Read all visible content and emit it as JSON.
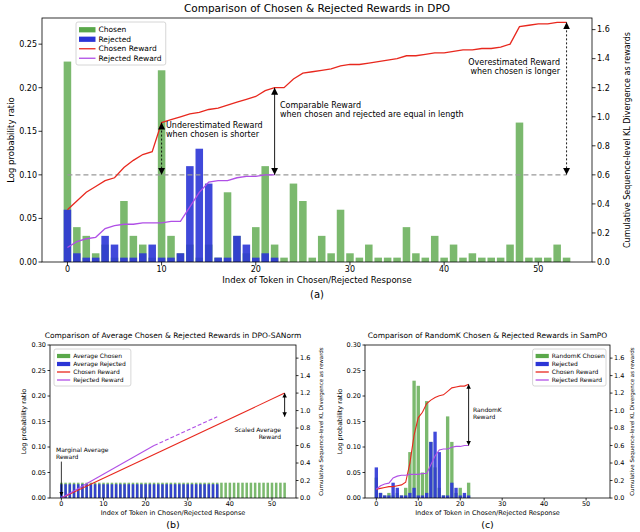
{
  "chart_data": [
    {
      "type": "bar",
      "title": "Comparison of Chosen & Rejected Rewards in DPO",
      "caption": "(a)",
      "x_label": "Index of Token in Chosen/Rejected Response",
      "y_label": "Log probability ratio",
      "y2_label": "Cumulative Sequence-level KL Divergence as rewards",
      "xlim": [
        -2.7,
        55.7
      ],
      "xticks": [
        0,
        10,
        20,
        30,
        40,
        50
      ],
      "ylim": [
        0,
        0.28
      ],
      "yticks": [
        {
          "value": 0,
          "label": "0.00"
        },
        0.05,
        {
          "value": 0.1,
          "label": "0.10"
        },
        0.15,
        {
          "value": 0.2,
          "label": "0.20"
        },
        0.25
      ],
      "y2lim": [
        0,
        1.68
      ],
      "y2ticks": [
        {
          "value": 0,
          "label": "0.0"
        },
        0.2,
        0.4,
        0.6,
        0.8,
        {
          "value": 1,
          "label": "1.0"
        },
        1.2,
        1.4,
        1.6
      ],
      "legend": "upper left",
      "series": [
        {
          "name": "Chosen",
          "type": "bar",
          "color": "#5aa84a",
          "x": [
            0,
            1,
            2,
            3,
            4,
            5,
            6,
            7,
            8,
            9,
            10,
            11,
            12,
            13,
            14,
            15,
            16,
            17,
            18,
            19,
            20,
            21,
            22,
            23,
            24,
            25,
            26,
            27,
            28,
            29,
            30,
            31,
            32,
            33,
            34,
            35,
            36,
            37,
            38,
            39,
            40,
            41,
            42,
            43,
            44,
            45,
            46,
            47,
            48,
            49,
            50,
            51,
            52,
            53
          ],
          "values": [
            0.23,
            0.04,
            0.03,
            0.01,
            0.02,
            0.005,
            0.07,
            0.03,
            0.02,
            0.005,
            0.22,
            0.03,
            0.01,
            0.02,
            0.005,
            0.02,
            0.005,
            0.08,
            0.03,
            0.01,
            0.04,
            0.11,
            0.02,
            0.005,
            0.09,
            0.07,
            0.005,
            0.03,
            0.01,
            0.06,
            0.01,
            0.005,
            0.02,
            0.005,
            0.005,
            0.005,
            0.04,
            0.01,
            0.005,
            0.03,
            0.005,
            0.02,
            0.005,
            0.01,
            0.005,
            0.005,
            0.005,
            0.02,
            0.16,
            0.005,
            0.005,
            0.005,
            0.02,
            0.005
          ]
        },
        {
          "name": "Rejected",
          "type": "bar",
          "color": "#2b35d6",
          "x": [
            0,
            1,
            2,
            3,
            4,
            5,
            6,
            7,
            8,
            9,
            10,
            11,
            12,
            13,
            14,
            15,
            16,
            17,
            18,
            19,
            20,
            21,
            22
          ],
          "values": [
            0.06,
            0.01,
            0.005,
            0.005,
            0.03,
            0.02,
            0.005,
            0.005,
            0.01,
            0.02,
            0.005,
            0.005,
            0.01,
            0.11,
            0.13,
            0.09,
            0.005,
            0.005,
            0.03,
            0.02,
            0.005,
            0.01,
            0.005
          ]
        },
        {
          "name": "Chosen Reward",
          "type": "line",
          "axis": "y2",
          "color": "#e8281e",
          "line_style": "solid",
          "x": [
            0,
            1,
            2,
            3,
            4,
            5,
            6,
            7,
            8,
            9,
            10,
            11,
            12,
            13,
            14,
            15,
            16,
            17,
            18,
            19,
            20,
            21,
            22,
            23,
            24,
            25,
            26,
            27,
            28,
            29,
            30,
            31,
            32,
            33,
            34,
            35,
            36,
            37,
            38,
            39,
            40,
            41,
            42,
            43,
            44,
            45,
            46,
            47,
            48,
            49,
            50,
            51,
            52,
            53
          ],
          "values": [
            0.36,
            0.42,
            0.48,
            0.52,
            0.56,
            0.58,
            0.65,
            0.7,
            0.74,
            0.76,
            0.96,
            0.98,
            1.0,
            1.02,
            1.03,
            1.05,
            1.06,
            1.08,
            1.1,
            1.12,
            1.14,
            1.18,
            1.2,
            1.2,
            1.26,
            1.3,
            1.31,
            1.32,
            1.33,
            1.35,
            1.36,
            1.36,
            1.37,
            1.38,
            1.39,
            1.4,
            1.42,
            1.42,
            1.43,
            1.44,
            1.44,
            1.45,
            1.46,
            1.46,
            1.47,
            1.47,
            1.48,
            1.5,
            1.62,
            1.63,
            1.64,
            1.64,
            1.65,
            1.65
          ]
        },
        {
          "name": "Rejected Reward",
          "type": "line",
          "axis": "y2",
          "color": "#b04fe6",
          "line_style": "solid",
          "x": [
            0,
            1,
            2,
            3,
            4,
            5,
            6,
            7,
            8,
            9,
            10,
            11,
            12,
            13,
            14,
            15,
            16,
            17,
            18,
            19,
            20,
            21,
            22
          ],
          "values": [
            0.1,
            0.14,
            0.16,
            0.17,
            0.23,
            0.25,
            0.26,
            0.26,
            0.27,
            0.27,
            0.27,
            0.28,
            0.28,
            0.38,
            0.48,
            0.55,
            0.56,
            0.56,
            0.58,
            0.59,
            0.59,
            0.6,
            0.6
          ]
        },
        {
          "type": "line",
          "axis": "y2",
          "color": "#999999",
          "line_style": "dashed",
          "x": [
            0,
            53
          ],
          "values": [
            0.6,
            0.6
          ]
        }
      ],
      "annotations": [
        {
          "text": "Underestimated Reward\nwhen chosen is shorter"
        },
        {
          "text": "Comparable Reward\nwhen chosen and rejected are equal in length"
        },
        {
          "text": "Overestimated Reward\nwhen chosen is longer"
        }
      ]
    },
    {
      "type": "bar",
      "title": "Comparison of Average Chosen & Rejected Rewards in DPO-SANorm",
      "caption": "(b)",
      "x_label": "Index of Token in Chosen/Rejected Response",
      "y_label": "Log probability ratio",
      "y2_label": "Cumulative Sequence-level KL Divergence as rewards",
      "xlim": [
        -2.7,
        55.7
      ],
      "xticks": [
        0,
        10,
        20,
        30,
        40,
        50
      ],
      "ylim": [
        0,
        0.3
      ],
      "yticks": [
        {
          "value": 0,
          "label": "0.00"
        },
        0.05,
        {
          "value": 0.1,
          "label": "0.10"
        },
        0.15,
        {
          "value": 0.2,
          "label": "0.20"
        },
        0.25,
        {
          "value": 0.3,
          "label": "0.30"
        }
      ],
      "y2lim": [
        0,
        1.75
      ],
      "y2ticks": [
        {
          "value": 0,
          "label": "0.0"
        },
        0.2,
        0.4,
        0.6,
        0.8,
        {
          "value": 1,
          "label": "1.0"
        },
        1.2,
        1.4,
        1.6
      ],
      "legend": "upper left",
      "series": [
        {
          "name": "Average Chosen",
          "type": "bar",
          "color": "#5aa84a",
          "x": [
            0,
            1,
            2,
            3,
            4,
            5,
            6,
            7,
            8,
            9,
            10,
            11,
            12,
            13,
            14,
            15,
            16,
            17,
            18,
            19,
            20,
            21,
            22,
            23,
            24,
            25,
            26,
            27,
            28,
            29,
            30,
            31,
            32,
            33,
            34,
            35,
            36,
            37,
            38,
            39,
            40,
            41,
            42,
            43,
            44,
            45,
            46,
            47,
            48,
            49,
            50,
            51,
            52,
            53
          ],
          "values": [
            0.03,
            0.03,
            0.03,
            0.03,
            0.03,
            0.03,
            0.03,
            0.03,
            0.03,
            0.03,
            0.03,
            0.03,
            0.03,
            0.03,
            0.03,
            0.03,
            0.03,
            0.03,
            0.03,
            0.03,
            0.03,
            0.03,
            0.03,
            0.03,
            0.03,
            0.03,
            0.03,
            0.03,
            0.03,
            0.03,
            0.03,
            0.03,
            0.03,
            0.03,
            0.03,
            0.03,
            0.03,
            0.03,
            0.03,
            0.03,
            0.03,
            0.03,
            0.03,
            0.03,
            0.03,
            0.03,
            0.03,
            0.03,
            0.03,
            0.03,
            0.03,
            0.03,
            0.03,
            0.03
          ]
        },
        {
          "name": "Average Rejected",
          "type": "bar",
          "color": "#2b35d6",
          "x": [
            0,
            1,
            2,
            3,
            4,
            5,
            6,
            7,
            8,
            9,
            10,
            11,
            12,
            13,
            14,
            15,
            16,
            17,
            18,
            19,
            20,
            21,
            22,
            23,
            24,
            25,
            26,
            27,
            28,
            29,
            30,
            31,
            32,
            33,
            34,
            35,
            36,
            37
          ],
          "values": [
            0.027,
            0.027,
            0.027,
            0.027,
            0.027,
            0.027,
            0.027,
            0.027,
            0.027,
            0.027,
            0.027,
            0.027,
            0.027,
            0.027,
            0.027,
            0.027,
            0.027,
            0.027,
            0.027,
            0.027,
            0.027,
            0.027,
            0.027,
            0.027,
            0.027,
            0.027,
            0.027,
            0.027,
            0.027,
            0.027,
            0.027,
            0.027,
            0.027,
            0.027,
            0.027,
            0.027,
            0.027,
            0.027
          ]
        },
        {
          "name": "Chosen Reward",
          "type": "line",
          "axis": "y2",
          "color": "#e8281e",
          "line_style": "solid",
          "x": [
            0,
            53
          ],
          "values": [
            0,
            1.2
          ]
        },
        {
          "name": "Rejected Reward",
          "type": "line",
          "axis": "y2",
          "color": "#b04fe6",
          "line_style": "solid",
          "x": [
            0,
            22
          ],
          "values": [
            0,
            0.6
          ]
        },
        {
          "type": "line",
          "axis": "y2",
          "color": "#b04fe6",
          "line_style": "dashed",
          "x": [
            22,
            37
          ],
          "values": [
            0.6,
            0.93
          ]
        }
      ],
      "annotations": [
        {
          "text": "Marginal Average\nReward"
        },
        {
          "text": "Scaled Average\nReward"
        }
      ]
    },
    {
      "type": "bar",
      "title": "Comparison of RandomK Chosen & Rejected Rewards in SamPO",
      "caption": "(c)",
      "x_label": "Index of Token in Chosen/Rejected Response",
      "y_label": "Log probability ratio",
      "y2_label": "Cumulative Sequence-level KL Divergence as rewards",
      "xlim": [
        -2.7,
        55.7
      ],
      "xticks": [
        0,
        10,
        20,
        30,
        40,
        50
      ],
      "ylim": [
        0,
        0.3
      ],
      "yticks": [
        {
          "value": 0,
          "label": "0.00"
        },
        0.05,
        {
          "value": 0.1,
          "label": "0.10"
        },
        0.15,
        {
          "value": 0.2,
          "label": "0.20"
        },
        0.25,
        {
          "value": 0.3,
          "label": "0.30"
        }
      ],
      "y2lim": [
        0,
        1.75
      ],
      "y2ticks": [
        {
          "value": 0,
          "label": "0.0"
        },
        0.2,
        0.4,
        0.6,
        0.8,
        {
          "value": 1,
          "label": "1.0"
        },
        1.2,
        1.4,
        1.6
      ],
      "legend": "upper right",
      "series": [
        {
          "name": "RandomK Chosen",
          "type": "bar",
          "color": "#5aa84a",
          "x": [
            0,
            1,
            2,
            3,
            4,
            5,
            6,
            7,
            8,
            9,
            10,
            11,
            12,
            13,
            14,
            15,
            16,
            17,
            18,
            19,
            20,
            21,
            22
          ],
          "values": [
            0.04,
            0.01,
            0.005,
            0.01,
            0.005,
            0.01,
            0.005,
            0.02,
            0.09,
            0.23,
            0.22,
            0.05,
            0.19,
            0.11,
            0.06,
            0.02,
            0.005,
            0.16,
            0.11,
            0.01,
            0.02,
            0.005,
            0.03
          ]
        },
        {
          "name": "Rejected",
          "type": "bar",
          "color": "#2b35d6",
          "x": [
            0,
            1,
            2,
            3,
            4,
            5,
            6,
            7,
            8,
            9,
            10,
            11,
            12,
            13,
            14,
            15,
            16,
            17,
            18,
            19,
            20,
            21,
            22
          ],
          "values": [
            0.06,
            0.01,
            0.005,
            0.005,
            0.03,
            0.02,
            0.005,
            0.005,
            0.01,
            0.02,
            0.005,
            0.005,
            0.01,
            0.11,
            0.13,
            0.09,
            0.005,
            0.005,
            0.03,
            0.02,
            0.005,
            0.01,
            0.005
          ]
        },
        {
          "name": "Chosen Reward",
          "type": "line",
          "axis": "y2",
          "color": "#e8281e",
          "line_style": "solid",
          "x": [
            0,
            1,
            2,
            3,
            4,
            5,
            6,
            7,
            8,
            9,
            10,
            11,
            12,
            13,
            14,
            15,
            16,
            17,
            18,
            19,
            20,
            21,
            22
          ],
          "values": [
            0.1,
            0.11,
            0.12,
            0.13,
            0.13,
            0.14,
            0.15,
            0.18,
            0.4,
            0.72,
            0.92,
            0.98,
            1.08,
            1.12,
            1.15,
            1.17,
            1.18,
            1.22,
            1.26,
            1.27,
            1.28,
            1.28,
            1.3
          ]
        },
        {
          "name": "Rejected Reward",
          "type": "line",
          "axis": "y2",
          "color": "#b04fe6",
          "line_style": "solid",
          "x": [
            0,
            1,
            2,
            3,
            4,
            5,
            6,
            7,
            8,
            9,
            10,
            11,
            12,
            13,
            14,
            15,
            16,
            17,
            18,
            19,
            20,
            21,
            22
          ],
          "values": [
            0.1,
            0.14,
            0.16,
            0.17,
            0.23,
            0.25,
            0.26,
            0.26,
            0.27,
            0.27,
            0.27,
            0.28,
            0.28,
            0.38,
            0.48,
            0.55,
            0.56,
            0.56,
            0.58,
            0.59,
            0.59,
            0.6,
            0.6
          ]
        }
      ],
      "annotations": [
        {
          "text": "RandomK\nReward"
        }
      ]
    }
  ]
}
